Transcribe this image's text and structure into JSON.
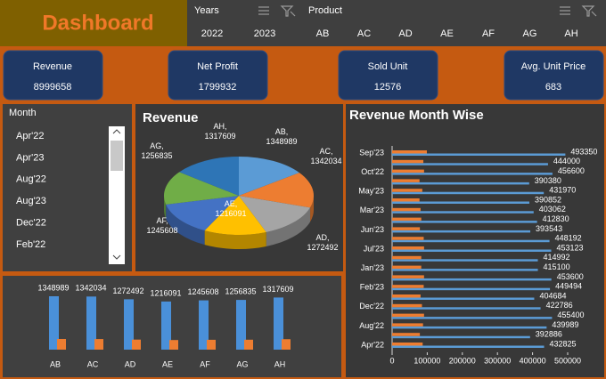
{
  "header": {
    "title": "Dashboard"
  },
  "slicers": {
    "years": {
      "title": "Years",
      "items": [
        "2022",
        "2023"
      ]
    },
    "product": {
      "title": "Product",
      "items": [
        "AB",
        "AC",
        "AD",
        "AE",
        "AF",
        "AG",
        "AH"
      ]
    },
    "month": {
      "title": "Month",
      "items": [
        "Apr'22",
        "Apr'23",
        "Aug'22",
        "Aug'23",
        "Dec'22",
        "Feb'22"
      ]
    }
  },
  "kpis": [
    {
      "label": "Revenue",
      "value": 8999658
    },
    {
      "label": "Net Profit",
      "value": 1799932
    },
    {
      "label": "Sold Unit",
      "value": 12576
    },
    {
      "label": "Avg. Unit Price",
      "value": 683
    }
  ],
  "chart_data": [
    {
      "type": "pie",
      "title": "Revenue",
      "categories": [
        "AB",
        "AC",
        "AD",
        "AE",
        "AF",
        "AG",
        "AH"
      ],
      "slice_labels": [
        "AB,",
        "AC,",
        "AD,",
        "AE,",
        "AF,",
        "AG,",
        "AH,"
      ],
      "values": [
        1348989,
        1342034,
        1272492,
        1216091,
        1245608,
        1256835,
        1317609
      ],
      "colors": [
        "#5b9bd5",
        "#ed7d31",
        "#a5a5a5",
        "#ffc000",
        "#4472c4",
        "#70ad47",
        "#2e75b6"
      ]
    },
    {
      "type": "bar",
      "categories": [
        "AB",
        "AC",
        "AD",
        "AE",
        "AF",
        "AG",
        "AH"
      ],
      "series": [
        {
          "color": "#4a90d9",
          "values": [
            1348989,
            1342034,
            1272492,
            1216091,
            1245608,
            1256835,
            1317609
          ]
        },
        {
          "color": "#ed7d31",
          "values": [
            270000,
            268000,
            254000,
            243000,
            249000,
            251000,
            264000
          ]
        }
      ]
    },
    {
      "type": "barh",
      "title": "Revenue Month Wise",
      "categories": [
        "Sep'23",
        null,
        "Oct'22",
        null,
        "May'23",
        null,
        "Mar'23",
        null,
        "Jun'23",
        null,
        "Jul'23",
        null,
        "Jan'23",
        null,
        "Feb'23",
        null,
        "Dec'22",
        null,
        "Aug'22",
        null,
        "Apr'22"
      ],
      "series": [
        {
          "color": "#5b9bd5",
          "values": [
            493350,
            444000,
            456600,
            390380,
            431970,
            390852,
            403062,
            412830,
            393543,
            448192,
            453123,
            414992,
            415100,
            453600,
            449494,
            404684,
            422786,
            455400,
            439989,
            392886,
            432825
          ]
        },
        {
          "color": "#ed7d31",
          "values": [
            99000,
            89000,
            91000,
            78000,
            86000,
            78000,
            81000,
            83000,
            79000,
            90000,
            91000,
            83000,
            83000,
            91000,
            90000,
            81000,
            85000,
            91000,
            88000,
            79000,
            87000
          ]
        }
      ],
      "xlim": [
        0,
        500000
      ],
      "xticks": [
        0,
        100000,
        200000,
        300000,
        400000,
        500000
      ]
    }
  ]
}
